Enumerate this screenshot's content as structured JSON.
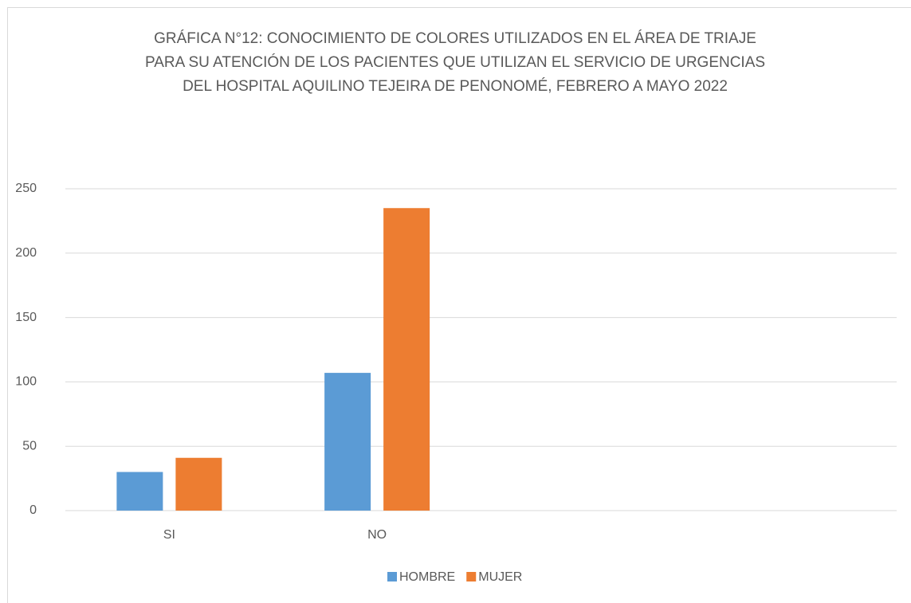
{
  "chart_data": {
    "type": "bar",
    "title": "GRÁFICA N°12: CONOCIMIENTO DE COLORES UTILIZADOS EN EL ÁREA DE TRIAJE PARA SU ATENCIÓN DE LOS PACIENTES QUE UTILIZAN EL SERVICIO DE URGENCIAS DEL HOSPITAL AQUILINO TEJEIRA DE PENONOMÉ, FEBRERO A MAYO 2022",
    "categories": [
      "SI",
      "NO",
      null,
      null
    ],
    "series": [
      {
        "name": "HOMBRE",
        "color": "#5b9bd5",
        "values": [
          30,
          107,
          null,
          null
        ]
      },
      {
        "name": "MUJER",
        "color": "#ed7d31",
        "values": [
          41,
          235,
          null,
          null
        ]
      }
    ],
    "ylim": [
      0,
      250
    ],
    "yticks": [
      0,
      50,
      100,
      150,
      200,
      250
    ],
    "grid": true,
    "legend": "bottom"
  }
}
